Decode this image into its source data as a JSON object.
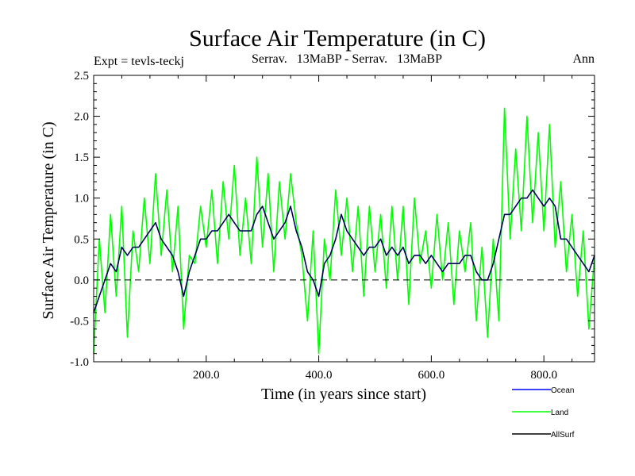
{
  "chart_data": {
    "type": "line",
    "title": "Surface Air Temperature (in C)",
    "subtitle_left": "Expt = tevls-teckj",
    "subtitle_center": "Serrav.   13MaBP - Serrav.   13MaBP",
    "subtitle_right": "Ann",
    "xlabel": "Time (in years since start)",
    "ylabel": "Surface Air Temperature (in C)",
    "xlim": [
      0,
      890
    ],
    "ylim": [
      -1.0,
      2.5
    ],
    "x_ticks": [
      200,
      400,
      600,
      800
    ],
    "x_tick_labels": [
      "200.0",
      "400.0",
      "600.0",
      "800.0"
    ],
    "y_ticks": [
      -1.0,
      -0.5,
      0.0,
      0.5,
      1.0,
      1.5,
      2.0,
      2.5
    ],
    "y_tick_labels": [
      "-1.0",
      "-0.5",
      "0.0",
      "0.5",
      "1.0",
      "1.5",
      "2.0",
      "2.5"
    ],
    "zero_line": 0.0,
    "legend_position": "bottom-right",
    "series": [
      {
        "name": "Land",
        "color": "#00ff00",
        "x": [
          0,
          10,
          20,
          30,
          40,
          50,
          60,
          70,
          80,
          90,
          100,
          110,
          120,
          130,
          140,
          150,
          160,
          170,
          180,
          190,
          200,
          210,
          220,
          230,
          240,
          250,
          260,
          270,
          280,
          290,
          300,
          310,
          320,
          330,
          340,
          350,
          360,
          370,
          380,
          390,
          400,
          410,
          420,
          430,
          440,
          450,
          460,
          470,
          480,
          490,
          500,
          510,
          520,
          530,
          540,
          550,
          560,
          570,
          580,
          590,
          600,
          610,
          620,
          630,
          640,
          650,
          660,
          670,
          680,
          690,
          700,
          710,
          720,
          730,
          740,
          750,
          760,
          770,
          780,
          790,
          800,
          810,
          820,
          830,
          840,
          850,
          860,
          870,
          880,
          890
        ],
        "values": [
          -0.9,
          0.5,
          -0.4,
          0.8,
          -0.2,
          0.9,
          -0.7,
          0.6,
          0.1,
          1.0,
          0.2,
          1.3,
          0.3,
          1.1,
          0.1,
          0.9,
          -0.6,
          0.3,
          0.2,
          0.9,
          0.4,
          1.1,
          0.2,
          1.2,
          0.5,
          1.4,
          0.3,
          1.0,
          0.2,
          1.5,
          0.4,
          1.3,
          0.1,
          1.2,
          0.5,
          1.3,
          0.7,
          0.3,
          -0.5,
          0.6,
          -0.9,
          0.5,
          0.0,
          1.1,
          0.3,
          1.0,
          0.1,
          0.9,
          -0.2,
          0.9,
          0.1,
          0.8,
          -0.1,
          0.9,
          0.0,
          0.9,
          -0.3,
          1.0,
          0.2,
          0.6,
          -0.1,
          0.8,
          0.0,
          0.7,
          -0.3,
          0.6,
          0.1,
          0.7,
          -0.5,
          0.4,
          -0.7,
          0.5,
          -0.5,
          2.1,
          0.5,
          1.6,
          0.6,
          2.0,
          0.7,
          1.8,
          0.6,
          1.9,
          0.4,
          1.2,
          0.1,
          0.8,
          -0.2,
          0.6,
          -0.6,
          0.3
        ]
      },
      {
        "name": "Ocean",
        "color": "#0000ff",
        "x": [
          0,
          10,
          20,
          30,
          40,
          50,
          60,
          70,
          80,
          90,
          100,
          110,
          120,
          130,
          140,
          150,
          160,
          170,
          180,
          190,
          200,
          210,
          220,
          230,
          240,
          250,
          260,
          270,
          280,
          290,
          300,
          310,
          320,
          330,
          340,
          350,
          360,
          370,
          380,
          390,
          400,
          410,
          420,
          430,
          440,
          450,
          460,
          470,
          480,
          490,
          500,
          510,
          520,
          530,
          540,
          550,
          560,
          570,
          580,
          590,
          600,
          610,
          620,
          630,
          640,
          650,
          660,
          670,
          680,
          690,
          700,
          710,
          720,
          730,
          740,
          750,
          760,
          770,
          780,
          790,
          800,
          810,
          820,
          830,
          840,
          850,
          860,
          870,
          880,
          890
        ],
        "values": [
          -0.4,
          -0.2,
          0.0,
          0.2,
          0.1,
          0.4,
          0.3,
          0.4,
          0.4,
          0.5,
          0.6,
          0.7,
          0.5,
          0.4,
          0.3,
          0.1,
          -0.2,
          0.1,
          0.3,
          0.5,
          0.5,
          0.6,
          0.6,
          0.7,
          0.8,
          0.7,
          0.6,
          0.6,
          0.6,
          0.8,
          0.9,
          0.7,
          0.5,
          0.6,
          0.7,
          0.9,
          0.6,
          0.4,
          0.1,
          0.0,
          -0.2,
          0.2,
          0.3,
          0.5,
          0.8,
          0.6,
          0.5,
          0.4,
          0.3,
          0.4,
          0.4,
          0.5,
          0.3,
          0.4,
          0.3,
          0.4,
          0.2,
          0.3,
          0.3,
          0.2,
          0.3,
          0.2,
          0.1,
          0.2,
          0.2,
          0.2,
          0.3,
          0.3,
          0.1,
          0.0,
          0.0,
          0.2,
          0.5,
          0.8,
          0.8,
          0.9,
          1.0,
          1.0,
          1.1,
          1.0,
          0.9,
          1.0,
          0.9,
          0.5,
          0.5,
          0.4,
          0.3,
          0.2,
          0.1,
          0.3
        ]
      },
      {
        "name": "AllSurf",
        "color": "#000000",
        "x": [
          0,
          10,
          20,
          30,
          40,
          50,
          60,
          70,
          80,
          90,
          100,
          110,
          120,
          130,
          140,
          150,
          160,
          170,
          180,
          190,
          200,
          210,
          220,
          230,
          240,
          250,
          260,
          270,
          280,
          290,
          300,
          310,
          320,
          330,
          340,
          350,
          360,
          370,
          380,
          390,
          400,
          410,
          420,
          430,
          440,
          450,
          460,
          470,
          480,
          490,
          500,
          510,
          520,
          530,
          540,
          550,
          560,
          570,
          580,
          590,
          600,
          610,
          620,
          630,
          640,
          650,
          660,
          670,
          680,
          690,
          700,
          710,
          720,
          730,
          740,
          750,
          760,
          770,
          780,
          790,
          800,
          810,
          820,
          830,
          840,
          850,
          860,
          870,
          880,
          890
        ],
        "values": [
          -0.4,
          -0.2,
          0.0,
          0.2,
          0.1,
          0.4,
          0.3,
          0.4,
          0.4,
          0.5,
          0.6,
          0.7,
          0.5,
          0.4,
          0.3,
          0.1,
          -0.2,
          0.1,
          0.3,
          0.5,
          0.5,
          0.6,
          0.6,
          0.7,
          0.8,
          0.7,
          0.6,
          0.6,
          0.6,
          0.8,
          0.9,
          0.7,
          0.5,
          0.6,
          0.7,
          0.9,
          0.6,
          0.4,
          0.1,
          0.0,
          -0.2,
          0.2,
          0.3,
          0.5,
          0.8,
          0.6,
          0.5,
          0.4,
          0.3,
          0.4,
          0.4,
          0.5,
          0.3,
          0.4,
          0.3,
          0.4,
          0.2,
          0.3,
          0.3,
          0.2,
          0.3,
          0.2,
          0.1,
          0.2,
          0.2,
          0.2,
          0.3,
          0.3,
          0.1,
          0.0,
          0.0,
          0.2,
          0.5,
          0.8,
          0.8,
          0.9,
          1.0,
          1.0,
          1.1,
          1.0,
          0.9,
          1.0,
          0.9,
          0.5,
          0.5,
          0.4,
          0.3,
          0.2,
          0.1,
          0.3
        ]
      }
    ],
    "legend_order": [
      "Ocean",
      "Land",
      "AllSurf"
    ]
  }
}
